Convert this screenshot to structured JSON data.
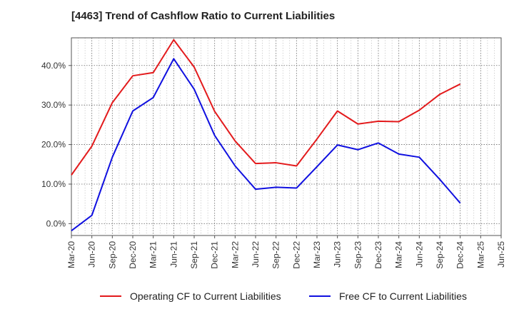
{
  "chart_data": {
    "type": "line",
    "title": "[4463]  Trend of Cashflow Ratio to Current Liabilities",
    "xlabel": "",
    "ylabel": "",
    "categories": [
      "Mar-20",
      "Jun-20",
      "Sep-20",
      "Dec-20",
      "Mar-21",
      "Jun-21",
      "Sep-21",
      "Dec-21",
      "Mar-22",
      "Jun-22",
      "Sep-22",
      "Dec-22",
      "Mar-23",
      "Jun-23",
      "Sep-23",
      "Dec-23",
      "Mar-24",
      "Jun-24",
      "Sep-24",
      "Dec-24",
      "Mar-25",
      "Jun-25"
    ],
    "y_ticks": [
      "0.0%",
      "10.0%",
      "20.0%",
      "30.0%",
      "40.0%"
    ],
    "ylim": [
      -3,
      47
    ],
    "grid": true,
    "legend_position": "bottom",
    "series": [
      {
        "name": "Operating CF to Current Liabilities",
        "color": "#e31a1c",
        "values": [
          12.3,
          19.6,
          30.6,
          37.4,
          38.2,
          46.5,
          39.6,
          28.4,
          20.9,
          15.2,
          15.4,
          14.6,
          21.4,
          28.5,
          25.2,
          25.9,
          25.8,
          28.7,
          32.7,
          35.3,
          null,
          null
        ]
      },
      {
        "name": "Free CF to Current Liabilities",
        "color": "#1010e0",
        "values": [
          -1.8,
          2.1,
          16.8,
          28.5,
          31.9,
          41.7,
          34.0,
          22.3,
          14.6,
          8.7,
          9.2,
          9.0,
          14.4,
          19.9,
          18.7,
          20.4,
          17.6,
          16.8,
          11.2,
          5.2,
          null,
          null
        ]
      }
    ]
  }
}
